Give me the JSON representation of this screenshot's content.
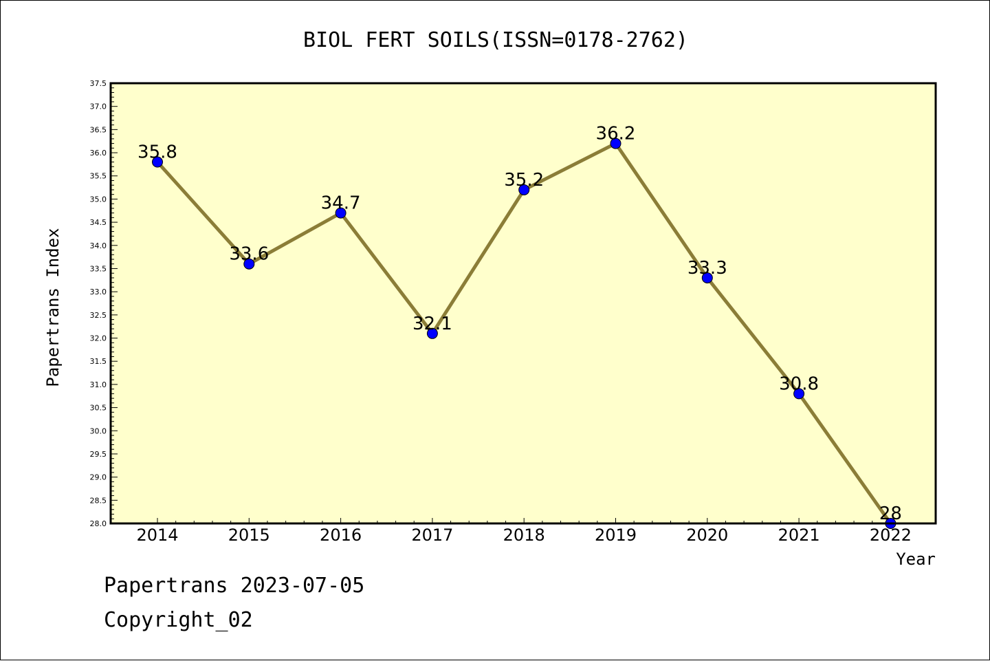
{
  "chart_data": {
    "type": "line",
    "title": "BIOL FERT SOILS(ISSN=0178-2762)",
    "xlabel": "Year",
    "ylabel": "Papertrans Index",
    "x": [
      "2014",
      "2015",
      "2016",
      "2017",
      "2018",
      "2019",
      "2020",
      "2021",
      "2022"
    ],
    "series": [
      {
        "values": [
          35.8,
          33.6,
          34.7,
          32.1,
          35.2,
          36.2,
          33.3,
          30.8,
          28.0
        ]
      }
    ],
    "data_labels": [
      "35.8",
      "33.6",
      "34.7",
      "32.1",
      "35.2",
      "36.2",
      "33.3",
      "30.8",
      "28"
    ],
    "ylim": [
      28.0,
      37.5
    ],
    "ytick_step": 0.5,
    "grid": false,
    "legend": "none",
    "colors": {
      "line": "#8b7d37",
      "marker": "#0000ff",
      "plot_background": "#ffffcc"
    }
  },
  "footer": {
    "line1": "Papertrans 2023-07-05",
    "line2": "Copyright_02"
  }
}
